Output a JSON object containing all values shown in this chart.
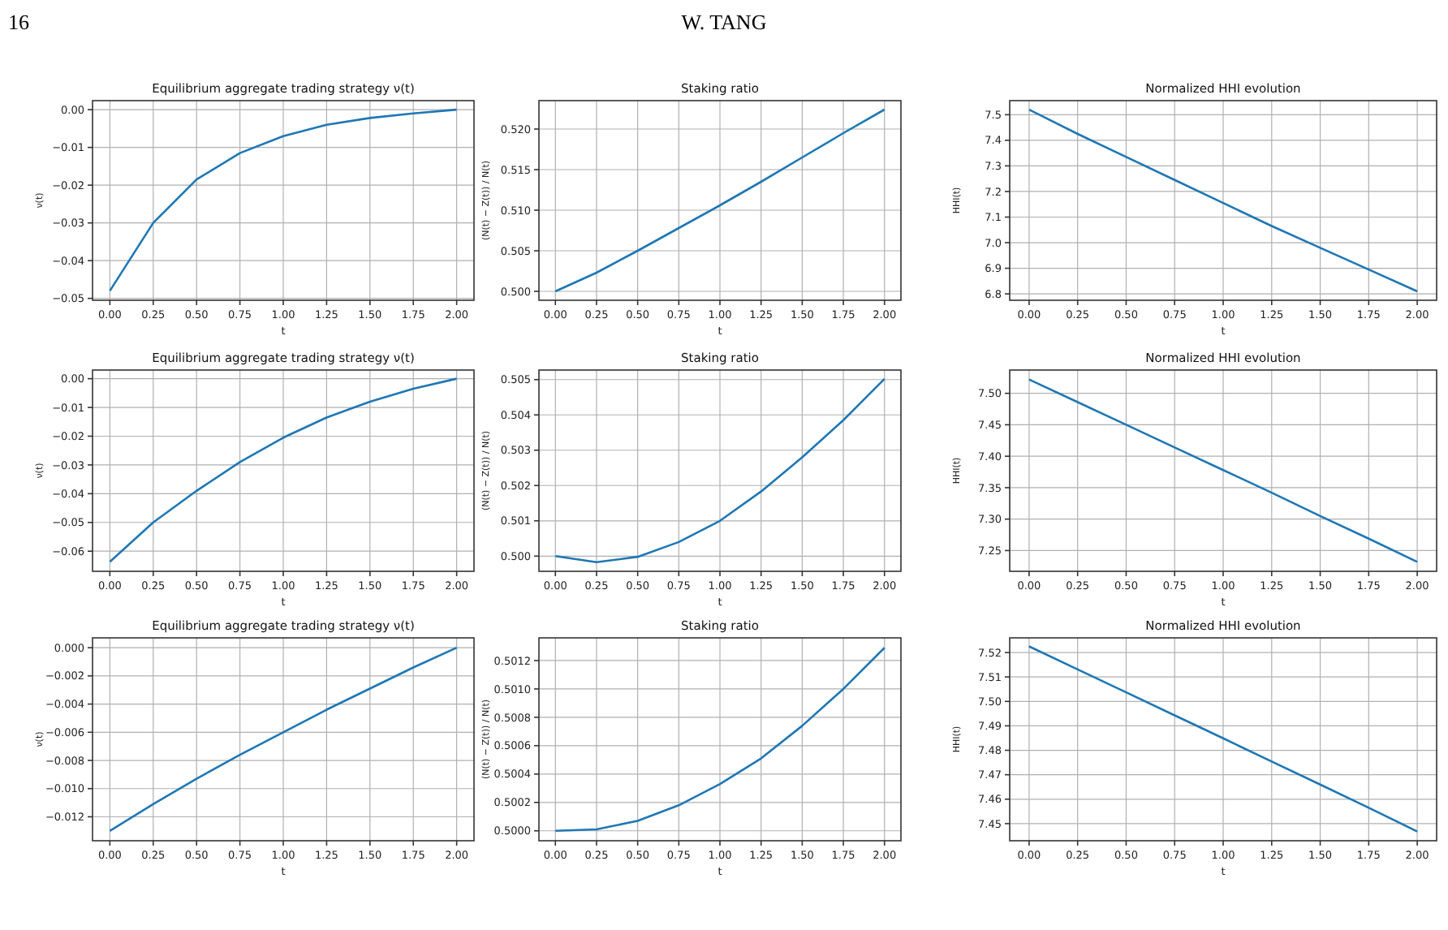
{
  "chart_data": [
    {
      "type": "line",
      "title": "Equilibrium aggregate trading strategy ν(t)",
      "xlabel": "t",
      "ylabel": "ν(t)",
      "annotations": [
        "16",
        "W. TANG"
      ],
      "grid": true,
      "x": [
        0,
        0.25,
        0.5,
        0.75,
        1,
        1.25,
        1.5,
        1.75,
        2
      ],
      "xlim": [
        -0.1,
        2.1
      ],
      "xticks": [
        {
          "value": 0,
          "label": "0.00"
        },
        {
          "value": 0.25,
          "label": "0.25"
        },
        {
          "value": 0.5,
          "label": "0.50"
        },
        {
          "value": 0.75,
          "label": "0.75"
        },
        {
          "value": 1,
          "label": "1.00"
        },
        {
          "value": 1.25,
          "label": "1.25"
        },
        {
          "value": 1.5,
          "label": "1.50"
        },
        {
          "value": 1.75,
          "label": "1.75"
        },
        {
          "value": 2,
          "label": "2.00"
        }
      ],
      "ylim": [
        -0.0505,
        0.0024
      ],
      "yticks": [
        {
          "value": -0.05,
          "label": "−0.05"
        },
        {
          "value": -0.04,
          "label": "−0.04"
        },
        {
          "value": -0.03,
          "label": "−0.03"
        },
        {
          "value": -0.02,
          "label": "−0.02"
        },
        {
          "value": -0.01,
          "label": "−0.01"
        },
        {
          "value": 0,
          "label": "0.00"
        }
      ],
      "series": [
        {
          "color": "#1f77b4",
          "values": [
            -0.048,
            -0.03,
            -0.0185,
            -0.0115,
            -0.007,
            -0.004,
            -0.0022,
            -0.001,
            0
          ]
        }
      ]
    },
    {
      "type": "line",
      "title": "Staking ratio",
      "xlabel": "t",
      "ylabel": "(N(t) − Z(t)) / N(t)",
      "grid": true,
      "x": [
        0,
        0.25,
        0.5,
        0.75,
        1,
        1.25,
        1.5,
        1.75,
        2
      ],
      "xlim": [
        -0.1,
        2.1
      ],
      "xticks": [
        {
          "value": 0,
          "label": "0.00"
        },
        {
          "value": 0.25,
          "label": "0.25"
        },
        {
          "value": 0.5,
          "label": "0.50"
        },
        {
          "value": 0.75,
          "label": "0.75"
        },
        {
          "value": 1,
          "label": "1.00"
        },
        {
          "value": 1.25,
          "label": "1.25"
        },
        {
          "value": 1.5,
          "label": "1.50"
        },
        {
          "value": 1.75,
          "label": "1.75"
        },
        {
          "value": 2,
          "label": "2.00"
        }
      ],
      "ylim": [
        0.4989,
        0.5235
      ],
      "yticks": [
        {
          "value": 0.5,
          "label": "0.500"
        },
        {
          "value": 0.505,
          "label": "0.505"
        },
        {
          "value": 0.51,
          "label": "0.510"
        },
        {
          "value": 0.515,
          "label": "0.515"
        },
        {
          "value": 0.52,
          "label": "0.520"
        }
      ],
      "series": [
        {
          "color": "#1f77b4",
          "values": [
            0.5,
            0.5023,
            0.505,
            0.5078,
            0.5106,
            0.5135,
            0.5165,
            0.5195,
            0.5224
          ]
        }
      ]
    },
    {
      "type": "line",
      "title": "Normalized HHI evolution",
      "xlabel": "t",
      "ylabel": "HHI(t)",
      "grid": true,
      "x": [
        0,
        0.25,
        0.5,
        0.75,
        1,
        1.25,
        1.5,
        1.75,
        2
      ],
      "xlim": [
        -0.1,
        2.1
      ],
      "xticks": [
        {
          "value": 0,
          "label": "0.00"
        },
        {
          "value": 0.25,
          "label": "0.25"
        },
        {
          "value": 0.5,
          "label": "0.50"
        },
        {
          "value": 0.75,
          "label": "0.75"
        },
        {
          "value": 1,
          "label": "1.00"
        },
        {
          "value": 1.25,
          "label": "1.25"
        },
        {
          "value": 1.5,
          "label": "1.50"
        },
        {
          "value": 1.75,
          "label": "1.75"
        },
        {
          "value": 2,
          "label": "2.00"
        }
      ],
      "ylim": [
        6.775,
        7.555
      ],
      "yticks": [
        6.8,
        6.9,
        {
          "value": 7,
          "label": "7.0"
        },
        7.1,
        7.2,
        7.3,
        7.4,
        7.5
      ],
      "series": [
        {
          "color": "#1f77b4",
          "values": [
            7.52,
            7.425,
            7.335,
            7.245,
            7.155,
            7.065,
            6.98,
            6.895,
            6.81
          ]
        }
      ]
    },
    {
      "type": "line",
      "title": "Equilibrium aggregate trading strategy ν(t)",
      "xlabel": "t",
      "ylabel": "ν(t)",
      "grid": true,
      "x": [
        0,
        0.25,
        0.5,
        0.75,
        1,
        1.25,
        1.5,
        1.75,
        2
      ],
      "xlim": [
        -0.1,
        2.1
      ],
      "xticks": [
        {
          "value": 0,
          "label": "0.00"
        },
        {
          "value": 0.25,
          "label": "0.25"
        },
        {
          "value": 0.5,
          "label": "0.50"
        },
        {
          "value": 0.75,
          "label": "0.75"
        },
        {
          "value": 1,
          "label": "1.00"
        },
        {
          "value": 1.25,
          "label": "1.25"
        },
        {
          "value": 1.5,
          "label": "1.50"
        },
        {
          "value": 1.75,
          "label": "1.75"
        },
        {
          "value": 2,
          "label": "2.00"
        }
      ],
      "ylim": [
        -0.067,
        0.003
      ],
      "yticks": [
        {
          "value": -0.06,
          "label": "−0.06"
        },
        {
          "value": -0.05,
          "label": "−0.05"
        },
        {
          "value": -0.04,
          "label": "−0.04"
        },
        {
          "value": -0.03,
          "label": "−0.03"
        },
        {
          "value": -0.02,
          "label": "−0.02"
        },
        {
          "value": -0.01,
          "label": "−0.01"
        },
        {
          "value": 0,
          "label": "0.00"
        }
      ],
      "series": [
        {
          "color": "#1f77b4",
          "values": [
            -0.0637,
            -0.05,
            -0.039,
            -0.029,
            -0.0205,
            -0.0135,
            -0.008,
            -0.0035,
            0
          ]
        }
      ]
    },
    {
      "type": "line",
      "title": "Staking ratio",
      "xlabel": "t",
      "ylabel": "(N(t) − Z(t)) / N(t)",
      "grid": true,
      "x": [
        0,
        0.25,
        0.5,
        0.75,
        1,
        1.25,
        1.5,
        1.75,
        2
      ],
      "xlim": [
        -0.1,
        2.1
      ],
      "xticks": [
        {
          "value": 0,
          "label": "0.00"
        },
        {
          "value": 0.25,
          "label": "0.25"
        },
        {
          "value": 0.5,
          "label": "0.50"
        },
        {
          "value": 0.75,
          "label": "0.75"
        },
        {
          "value": 1,
          "label": "1.00"
        },
        {
          "value": 1.25,
          "label": "1.25"
        },
        {
          "value": 1.5,
          "label": "1.50"
        },
        {
          "value": 1.75,
          "label": "1.75"
        },
        {
          "value": 2,
          "label": "2.00"
        }
      ],
      "ylim": [
        0.49957,
        0.50527
      ],
      "yticks": [
        {
          "value": 0.5,
          "label": "0.500"
        },
        0.501,
        0.502,
        0.503,
        0.504,
        0.505
      ],
      "series": [
        {
          "color": "#1f77b4",
          "values": [
            0.5,
            0.49983,
            0.49998,
            0.5004,
            0.501,
            0.50183,
            0.5028,
            0.50385,
            0.50502
          ]
        }
      ]
    },
    {
      "type": "line",
      "title": "Normalized HHI evolution",
      "xlabel": "t",
      "ylabel": "HHI(t)",
      "grid": true,
      "x": [
        0,
        0.25,
        0.5,
        0.75,
        1,
        1.25,
        1.5,
        1.75,
        2
      ],
      "xlim": [
        -0.1,
        2.1
      ],
      "xticks": [
        {
          "value": 0,
          "label": "0.00"
        },
        {
          "value": 0.25,
          "label": "0.25"
        },
        {
          "value": 0.5,
          "label": "0.50"
        },
        {
          "value": 0.75,
          "label": "0.75"
        },
        {
          "value": 1,
          "label": "1.00"
        },
        {
          "value": 1.25,
          "label": "1.25"
        },
        {
          "value": 1.5,
          "label": "1.50"
        },
        {
          "value": 1.75,
          "label": "1.75"
        },
        {
          "value": 2,
          "label": "2.00"
        }
      ],
      "ylim": [
        7.217,
        7.537
      ],
      "yticks": [
        7.25,
        {
          "value": 7.3,
          "label": "7.30"
        },
        7.35,
        {
          "value": 7.4,
          "label": "7.40"
        },
        7.45,
        {
          "value": 7.5,
          "label": "7.50"
        }
      ],
      "series": [
        {
          "color": "#1f77b4",
          "values": [
            7.522,
            7.486,
            7.45,
            7.414,
            7.378,
            7.342,
            7.305,
            7.269,
            7.232
          ]
        }
      ]
    },
    {
      "type": "line",
      "title": "Equilibrium aggregate trading strategy ν(t)",
      "xlabel": "t",
      "ylabel": "ν(t)",
      "grid": true,
      "x": [
        0,
        0.25,
        0.5,
        0.75,
        1,
        1.25,
        1.5,
        1.75,
        2
      ],
      "xlim": [
        -0.1,
        2.1
      ],
      "xticks": [
        {
          "value": 0,
          "label": "0.00"
        },
        {
          "value": 0.25,
          "label": "0.25"
        },
        {
          "value": 0.5,
          "label": "0.50"
        },
        {
          "value": 0.75,
          "label": "0.75"
        },
        {
          "value": 1,
          "label": "1.00"
        },
        {
          "value": 1.25,
          "label": "1.25"
        },
        {
          "value": 1.5,
          "label": "1.50"
        },
        {
          "value": 1.75,
          "label": "1.75"
        },
        {
          "value": 2,
          "label": "2.00"
        }
      ],
      "ylim": [
        -0.0137,
        0.0007
      ],
      "yticks": [
        {
          "value": -0.012,
          "label": "−0.012"
        },
        {
          "value": -0.01,
          "label": "−0.010"
        },
        {
          "value": -0.008,
          "label": "−0.008"
        },
        {
          "value": -0.006,
          "label": "−0.006"
        },
        {
          "value": -0.004,
          "label": "−0.004"
        },
        {
          "value": -0.002,
          "label": "−0.002"
        },
        {
          "value": 0,
          "label": "0.000"
        }
      ],
      "series": [
        {
          "color": "#1f77b4",
          "values": [
            -0.013,
            -0.0111,
            -0.0093,
            -0.0076,
            -0.006,
            -0.0044,
            -0.0029,
            -0.0014,
            0
          ]
        }
      ]
    },
    {
      "type": "line",
      "title": "Staking ratio",
      "xlabel": "t",
      "ylabel": "(N(t) − Z(t)) / N(t)",
      "grid": true,
      "x": [
        0,
        0.25,
        0.5,
        0.75,
        1,
        1.25,
        1.5,
        1.75,
        2
      ],
      "xlim": [
        -0.1,
        2.1
      ],
      "xticks": [
        {
          "value": 0,
          "label": "0.00"
        },
        {
          "value": 0.25,
          "label": "0.25"
        },
        {
          "value": 0.5,
          "label": "0.50"
        },
        {
          "value": 0.75,
          "label": "0.75"
        },
        {
          "value": 1,
          "label": "1.00"
        },
        {
          "value": 1.25,
          "label": "1.25"
        },
        {
          "value": 1.5,
          "label": "1.50"
        },
        {
          "value": 1.75,
          "label": "1.75"
        },
        {
          "value": 2,
          "label": "2.00"
        }
      ],
      "ylim": [
        0.49993,
        0.50136
      ],
      "yticks": [
        {
          "value": 0.5,
          "label": "0.5000"
        },
        0.5002,
        0.5004,
        0.5006,
        0.5008,
        {
          "value": 0.501,
          "label": "0.5010"
        },
        0.5012
      ],
      "series": [
        {
          "color": "#1f77b4",
          "values": [
            0.5,
            0.50001,
            0.50007,
            0.50018,
            0.50033,
            0.50051,
            0.50074,
            0.501,
            0.50129
          ]
        }
      ]
    },
    {
      "type": "line",
      "title": "Normalized HHI evolution",
      "xlabel": "t",
      "ylabel": "HHI(t)",
      "grid": true,
      "x": [
        0,
        0.25,
        0.5,
        0.75,
        1,
        1.25,
        1.5,
        1.75,
        2
      ],
      "xlim": [
        -0.1,
        2.1
      ],
      "xticks": [
        {
          "value": 0,
          "label": "0.00"
        },
        {
          "value": 0.25,
          "label": "0.25"
        },
        {
          "value": 0.5,
          "label": "0.50"
        },
        {
          "value": 0.75,
          "label": "0.75"
        },
        {
          "value": 1,
          "label": "1.00"
        },
        {
          "value": 1.25,
          "label": "1.25"
        },
        {
          "value": 1.5,
          "label": "1.50"
        },
        {
          "value": 1.75,
          "label": "1.75"
        },
        {
          "value": 2,
          "label": "2.00"
        }
      ],
      "ylim": [
        7.443,
        7.526
      ],
      "yticks": [
        7.45,
        7.46,
        7.47,
        7.48,
        7.49,
        {
          "value": 7.5,
          "label": "7.50"
        },
        7.51,
        7.52
      ],
      "series": [
        {
          "color": "#1f77b4",
          "values": [
            7.5225,
            7.5131,
            7.5037,
            7.4943,
            7.4849,
            7.4754,
            7.466,
            7.4565,
            7.4468
          ]
        }
      ]
    }
  ]
}
